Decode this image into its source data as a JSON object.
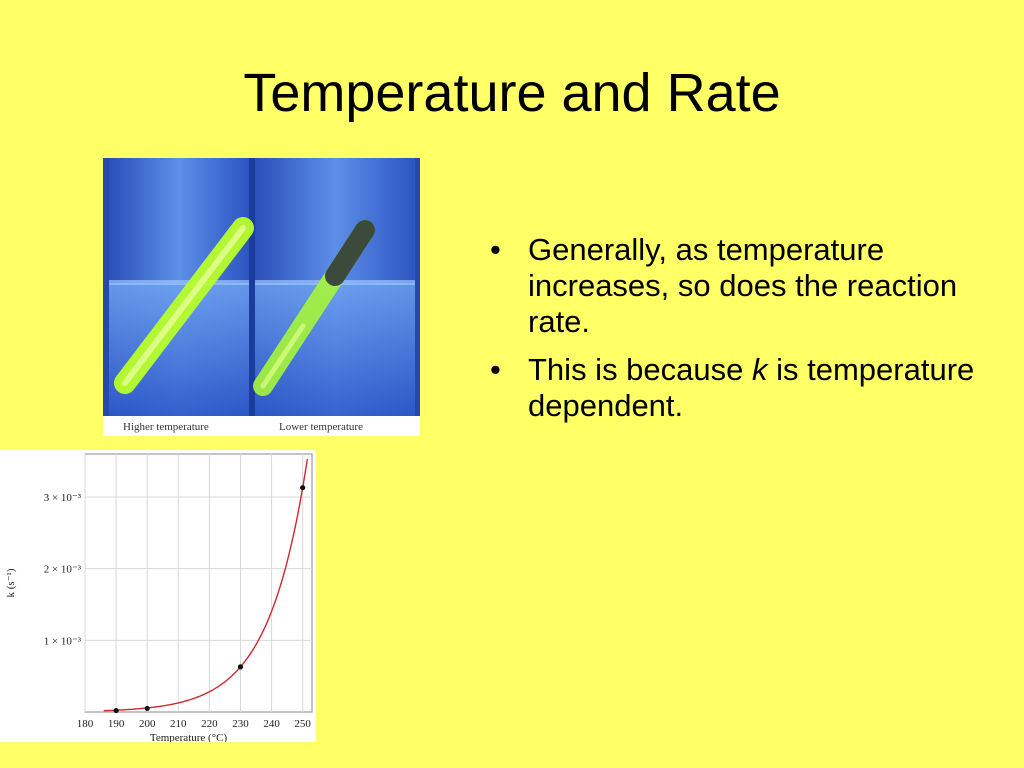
{
  "slide": {
    "title": "Temperature and Rate",
    "bullets": [
      {
        "text": "Generally, as temperature increases, so does the reaction rate."
      },
      {
        "pre": "This is because ",
        "em": "k",
        "post": " is temperature dependent."
      }
    ],
    "bullet_glyph": "•"
  },
  "photo": {
    "left_caption": "Higher temperature",
    "right_caption": "Lower temperature",
    "colors": {
      "glass": "#3E6FD8",
      "glow": "#B8FF2A"
    }
  },
  "chart_data": {
    "type": "line",
    "xlabel": "Temperature (°C)",
    "ylabel": "k (s⁻¹)",
    "x_ticks": [
      180,
      190,
      200,
      210,
      220,
      230,
      240,
      250
    ],
    "y_ticks": [
      {
        "value": 0.001,
        "label": "1 × 10⁻³"
      },
      {
        "value": 0.002,
        "label": "2 × 10⁻³"
      },
      {
        "value": 0.003,
        "label": "3 × 10⁻³"
      }
    ],
    "xlim": [
      180,
      253
    ],
    "ylim": [
      0,
      0.0036
    ],
    "grid": true,
    "series": [
      {
        "points": [
          {
            "x": 190,
            "y": 2e-05
          },
          {
            "x": 200,
            "y": 5e-05
          },
          {
            "x": 230,
            "y": 0.00063
          },
          {
            "x": 250,
            "y": 0.00313
          }
        ],
        "color": "#D0282E"
      }
    ]
  }
}
